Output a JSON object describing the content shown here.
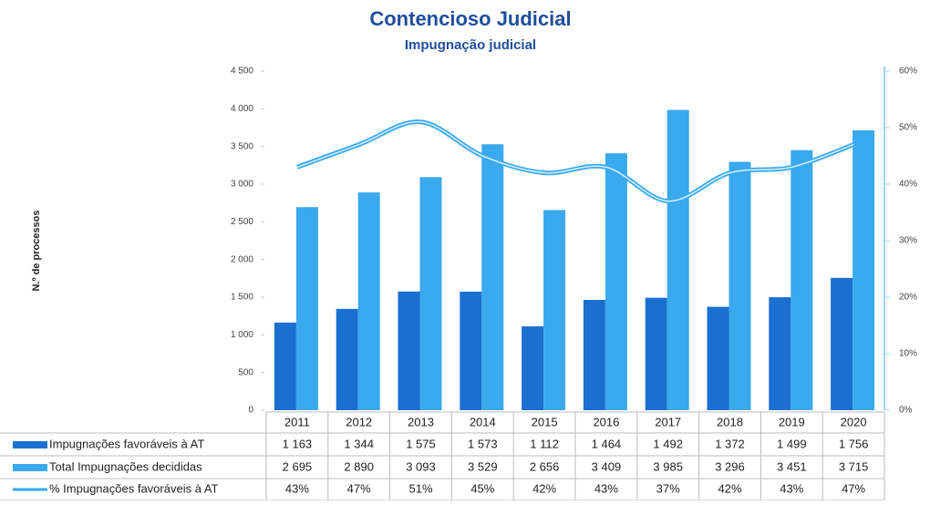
{
  "chart_data": {
    "type": "bar",
    "title": "Contencioso Judicial",
    "subtitle": "Impugnação judicial",
    "y_label": "N.º de processos",
    "categories": [
      "2011",
      "2012",
      "2013",
      "2014",
      "2015",
      "2016",
      "2017",
      "2018",
      "2019",
      "2020"
    ],
    "series": [
      {
        "name": "Impugnações favoráveis à AT",
        "color": "#1a6fd0",
        "values": [
          1163,
          1344,
          1575,
          1573,
          1112,
          1464,
          1492,
          1372,
          1499,
          1756
        ],
        "value_labels": [
          "1 163",
          "1 344",
          "1 575",
          "1 573",
          "1 112",
          "1 464",
          "1 492",
          "1 372",
          "1 499",
          "1 756"
        ]
      },
      {
        "name": "Total Impugnações decididas",
        "color": "#3aa9ee",
        "values": [
          2695,
          2890,
          3093,
          3529,
          2656,
          3409,
          3985,
          3296,
          3451,
          3715
        ],
        "value_labels": [
          "2 695",
          "2 890",
          "3 093",
          "3 529",
          "2 656",
          "3 409",
          "3 985",
          "3 296",
          "3 451",
          "3 715"
        ]
      },
      {
        "name": "% Impugnações favoráveis à AT",
        "color": "#3aa9ee",
        "type": "line",
        "axis": "y2",
        "values": [
          43,
          47,
          51,
          45,
          42,
          43,
          37,
          42,
          43,
          47
        ],
        "value_labels": [
          "43%",
          "47%",
          "51%",
          "45%",
          "42%",
          "43%",
          "37%",
          "42%",
          "43%",
          "47%"
        ]
      }
    ],
    "ylim": [
      0,
      4500
    ],
    "yticks": [
      0,
      500,
      {
        "value": 1000,
        "label": "1 000"
      },
      {
        "value": 1500,
        "label": "1 500"
      },
      {
        "value": 2000,
        "label": "2 000"
      },
      {
        "value": 2500,
        "label": "2 500"
      },
      {
        "value": 3000,
        "label": "3 000"
      },
      {
        "value": 3500,
        "label": "3 500"
      },
      {
        "value": 4000,
        "label": "4 000"
      },
      {
        "value": 4500,
        "label": "4 500"
      }
    ],
    "y2lim": [
      0,
      60
    ],
    "y2ticks": [
      {
        "value": 0,
        "label": "0%"
      },
      {
        "value": 10,
        "label": "10%"
      },
      {
        "value": 20,
        "label": "20%"
      },
      {
        "value": 30,
        "label": "30%"
      },
      {
        "value": 40,
        "label": "40%"
      },
      {
        "value": 50,
        "label": "50%"
      },
      {
        "value": 60,
        "label": "60%"
      }
    ]
  }
}
